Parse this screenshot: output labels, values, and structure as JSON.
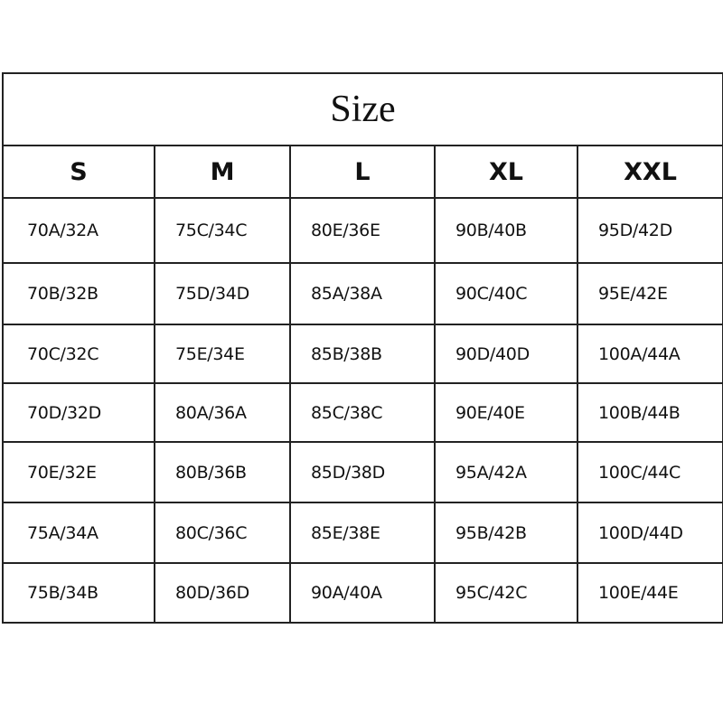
{
  "title": "Size",
  "headers": [
    "S",
    "M",
    "L",
    "XL",
    "XXL"
  ],
  "rows": [
    [
      "70A/32A",
      "75C/34C",
      "80E/36E",
      "90B/40B",
      "95D/42D"
    ],
    [
      "70B/32B",
      "75D/34D",
      "85A/38A",
      "90C/40C",
      "95E/42E"
    ],
    [
      "70C/32C",
      "75E/34E",
      "85B/38B",
      "90D/40D",
      "100A/44A"
    ],
    [
      "70D/32D",
      "80A/36A",
      "85C/38C",
      "90E/40E",
      "100B/44B"
    ],
    [
      "70E/32E",
      "80B/36B",
      "85D/38D",
      "95A/42A",
      "100C/44C"
    ],
    [
      "75A/34A",
      "80C/36C",
      "85E/38E",
      "95B/42B",
      "100D/44D"
    ],
    [
      "75B/34B",
      "80D/36D",
      "90A/40A",
      "95C/42C",
      "100E/44E"
    ]
  ]
}
